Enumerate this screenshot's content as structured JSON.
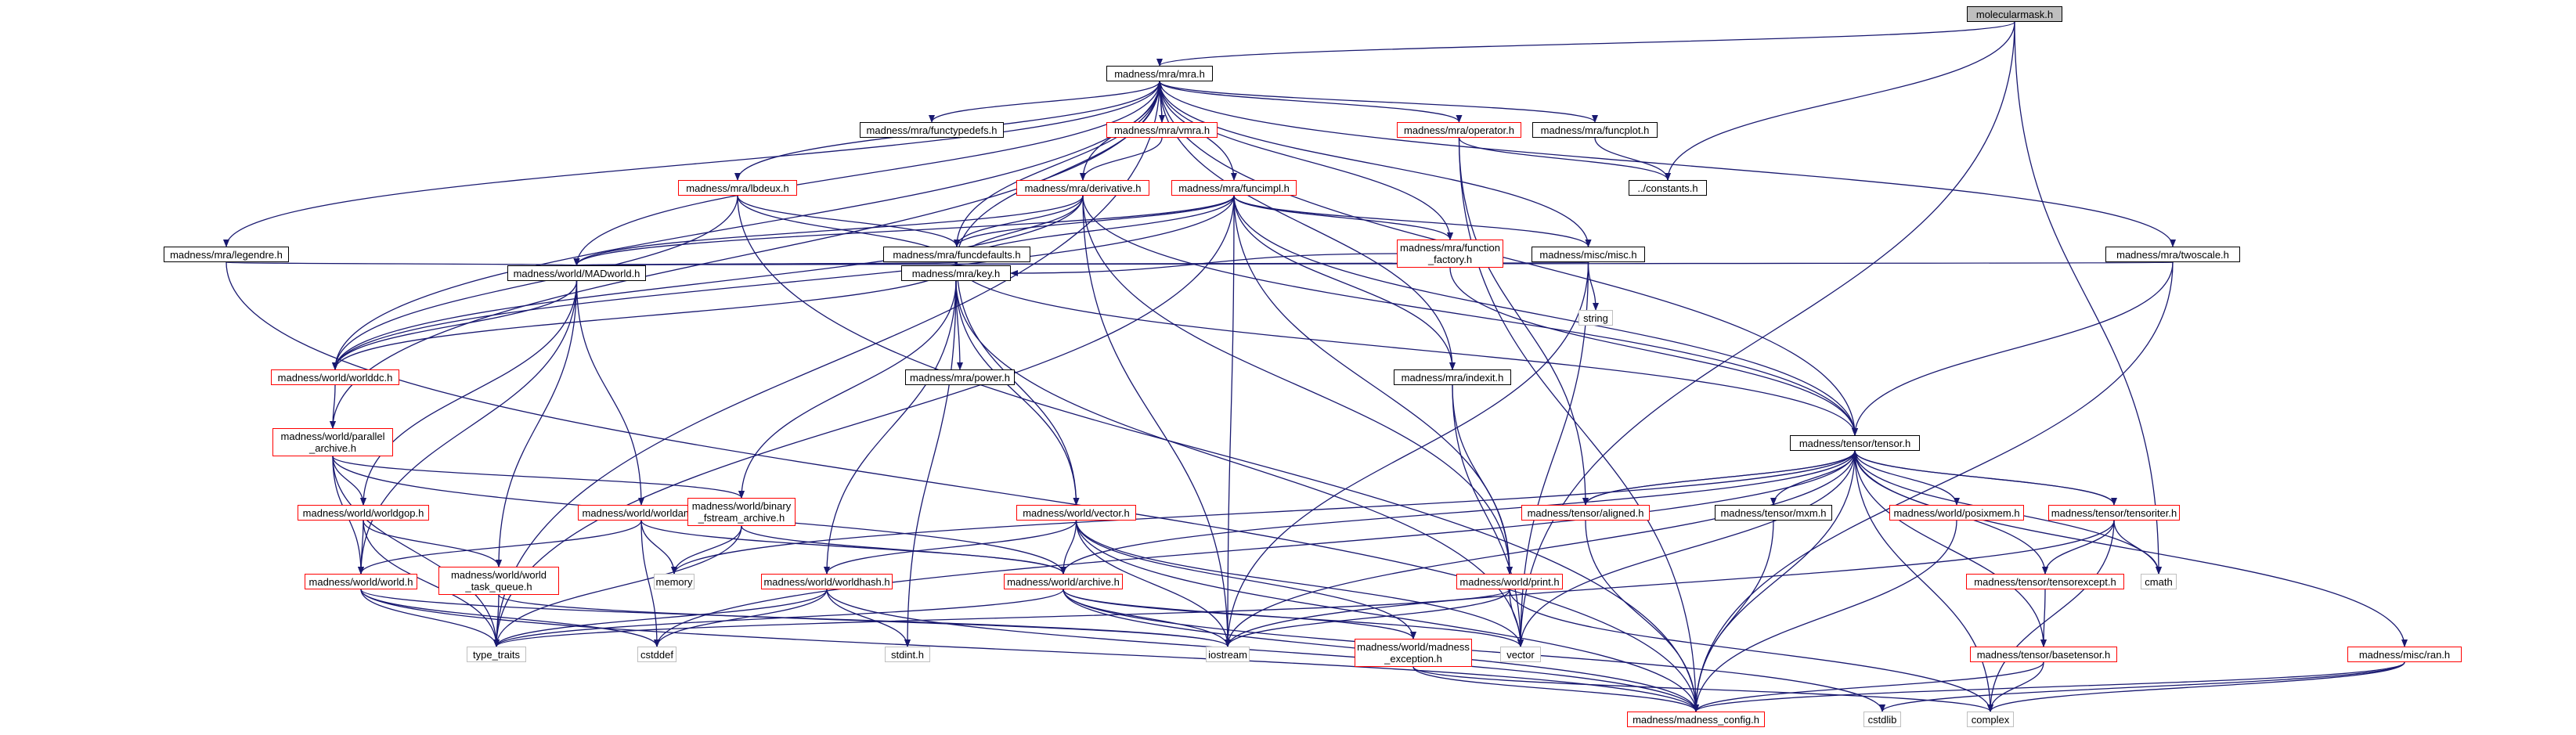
{
  "diagram": {
    "colors": {
      "edge": "#191970",
      "node_border": "#000000",
      "incomplete_border": "#ff0000",
      "system_border": "#bfbfbf",
      "root_fill": "#bfbfbf"
    },
    "nodes": {
      "moleculr": {
        "label": "molecularmask.h",
        "kind": "root"
      },
      "mra": {
        "label": "madness/mra/mra.h",
        "kind": "normal"
      },
      "ftypedefs": {
        "label": "madness/mra/functypedefs.h",
        "kind": "normal"
      },
      "vmra": {
        "label": "madness/mra/vmra.h",
        "kind": "incomplete"
      },
      "operator": {
        "label": "madness/mra/operator.h",
        "kind": "incomplete"
      },
      "funcplot": {
        "label": "madness/mra/funcplot.h",
        "kind": "normal"
      },
      "constants": {
        "label": "../constants.h",
        "kind": "normal"
      },
      "lbdeux": {
        "label": "madness/mra/lbdeux.h",
        "kind": "incomplete"
      },
      "derivative": {
        "label": "madness/mra/derivative.h",
        "kind": "incomplete"
      },
      "funcimpl": {
        "label": "madness/mra/funcimpl.h",
        "kind": "incomplete"
      },
      "legendre": {
        "label": "madness/mra/legendre.h",
        "kind": "normal"
      },
      "funcdefaults": {
        "label": "madness/mra/funcdefaults.h",
        "kind": "normal"
      },
      "ffactory": {
        "label": "madness/mra/function\n_factory.h",
        "kind": "incomplete"
      },
      "miscmisc": {
        "label": "madness/misc/misc.h",
        "kind": "normal"
      },
      "twoscale": {
        "label": "madness/mra/twoscale.h",
        "kind": "normal"
      },
      "string": {
        "label": "string",
        "kind": "system"
      },
      "madworld": {
        "label": "madness/world/MADworld.h",
        "kind": "normal"
      },
      "key": {
        "label": "madness/mra/key.h",
        "kind": "normal"
      },
      "worlddc": {
        "label": "madness/world/worlddc.h",
        "kind": "incomplete"
      },
      "power": {
        "label": "madness/mra/power.h",
        "kind": "normal"
      },
      "indexit": {
        "label": "madness/mra/indexit.h",
        "kind": "normal"
      },
      "parallel": {
        "label": "madness/world/parallel\n_archive.h",
        "kind": "incomplete"
      },
      "tensor": {
        "label": "madness/tensor/tensor.h",
        "kind": "normal"
      },
      "worldgop": {
        "label": "madness/world/worldgop.h",
        "kind": "incomplete"
      },
      "worldam": {
        "label": "madness/world/worldam.h",
        "kind": "incomplete"
      },
      "binary": {
        "label": "madness/world/binary\n_fstream_archive.h",
        "kind": "incomplete"
      },
      "vector_h": {
        "label": "madness/world/vector.h",
        "kind": "incomplete"
      },
      "aligned": {
        "label": "madness/tensor/aligned.h",
        "kind": "incomplete"
      },
      "mxm": {
        "label": "madness/tensor/mxm.h",
        "kind": "normal"
      },
      "posixmem": {
        "label": "madness/world/posixmem.h",
        "kind": "incomplete"
      },
      "tensoriter": {
        "label": "madness/tensor/tensoriter.h",
        "kind": "incomplete"
      },
      "world": {
        "label": "madness/world/world.h",
        "kind": "incomplete"
      },
      "wtaskq": {
        "label": "madness/world/world\n_task_queue.h",
        "kind": "incomplete"
      },
      "memory": {
        "label": "memory",
        "kind": "system"
      },
      "worldhash": {
        "label": "madness/world/worldhash.h",
        "kind": "incomplete"
      },
      "archive": {
        "label": "madness/world/archive.h",
        "kind": "incomplete"
      },
      "print": {
        "label": "madness/world/print.h",
        "kind": "incomplete"
      },
      "tensorexcept": {
        "label": "madness/tensor/tensorexcept.h",
        "kind": "incomplete"
      },
      "cmath": {
        "label": "cmath",
        "kind": "system"
      },
      "type_traits": {
        "label": "type_traits",
        "kind": "system"
      },
      "cstddef": {
        "label": "cstddef",
        "kind": "system"
      },
      "stdint": {
        "label": "stdint.h",
        "kind": "system"
      },
      "iostream": {
        "label": "iostream",
        "kind": "system"
      },
      "vector": {
        "label": "vector",
        "kind": "system"
      },
      "madexc": {
        "label": "madness/world/madness\n_exception.h",
        "kind": "incomplete"
      },
      "basetensor": {
        "label": "madness/tensor/basetensor.h",
        "kind": "incomplete"
      },
      "ran": {
        "label": "madness/misc/ran.h",
        "kind": "incomplete"
      },
      "config": {
        "label": "madness/madness_config.h",
        "kind": "incomplete"
      },
      "cstdlib": {
        "label": "cstdlib",
        "kind": "system"
      },
      "complex": {
        "label": "complex",
        "kind": "system"
      }
    },
    "edges": [
      [
        "moleculr",
        "mra"
      ],
      [
        "moleculr",
        "constants"
      ],
      [
        "moleculr",
        "cmath"
      ],
      [
        "moleculr",
        "vector"
      ],
      [
        "mra",
        "ftypedefs"
      ],
      [
        "mra",
        "vmra"
      ],
      [
        "mra",
        "operator"
      ],
      [
        "mra",
        "funcplot"
      ],
      [
        "mra",
        "lbdeux"
      ],
      [
        "mra",
        "derivative"
      ],
      [
        "mra",
        "funcimpl"
      ],
      [
        "mra",
        "legendre"
      ],
      [
        "mra",
        "funcdefaults"
      ],
      [
        "mra",
        "ffactory"
      ],
      [
        "mra",
        "miscmisc"
      ],
      [
        "mra",
        "twoscale"
      ],
      [
        "mra",
        "madworld"
      ],
      [
        "mra",
        "key"
      ],
      [
        "mra",
        "worlddc"
      ],
      [
        "mra",
        "indexit"
      ],
      [
        "mra",
        "parallel"
      ],
      [
        "mra",
        "tensor"
      ],
      [
        "mra",
        "type_traits"
      ],
      [
        "vmra",
        "mra"
      ],
      [
        "vmra",
        "derivative"
      ],
      [
        "operator",
        "constants"
      ],
      [
        "operator",
        "aligned"
      ],
      [
        "operator",
        "config"
      ],
      [
        "funcplot",
        "constants"
      ],
      [
        "lbdeux",
        "funcdefaults"
      ],
      [
        "lbdeux",
        "key"
      ],
      [
        "lbdeux",
        "worlddc"
      ],
      [
        "lbdeux",
        "config"
      ],
      [
        "derivative",
        "funcdefaults"
      ],
      [
        "derivative",
        "key"
      ],
      [
        "derivative",
        "madworld"
      ],
      [
        "derivative",
        "worlddc"
      ],
      [
        "derivative",
        "tensor"
      ],
      [
        "derivative",
        "iostream"
      ],
      [
        "derivative",
        "print"
      ],
      [
        "funcimpl",
        "miscmisc"
      ],
      [
        "funcimpl",
        "ffactory"
      ],
      [
        "funcimpl",
        "funcdefaults"
      ],
      [
        "funcimpl",
        "key"
      ],
      [
        "funcimpl",
        "madworld"
      ],
      [
        "funcimpl",
        "worlddc"
      ],
      [
        "funcimpl",
        "indexit"
      ],
      [
        "funcimpl",
        "tensor"
      ],
      [
        "funcimpl",
        "iostream"
      ],
      [
        "funcimpl",
        "print"
      ],
      [
        "funcimpl",
        "type_traits"
      ],
      [
        "legendre",
        "madworld"
      ],
      [
        "legendre",
        "config"
      ],
      [
        "funcdefaults",
        "madworld"
      ],
      [
        "funcdefaults",
        "key"
      ],
      [
        "funcdefaults",
        "tensor"
      ],
      [
        "funcdefaults",
        "vector_h"
      ],
      [
        "funcdefaults",
        "worlddc"
      ],
      [
        "ffactory",
        "key"
      ],
      [
        "ffactory",
        "tensor"
      ],
      [
        "miscmisc",
        "string"
      ],
      [
        "miscmisc",
        "iostream"
      ],
      [
        "miscmisc",
        "madworld"
      ],
      [
        "miscmisc",
        "vector"
      ],
      [
        "twoscale",
        "tensor"
      ],
      [
        "twoscale",
        "madworld"
      ],
      [
        "twoscale",
        "config"
      ],
      [
        "madworld",
        "worlddc"
      ],
      [
        "madworld",
        "worldgop"
      ],
      [
        "madworld",
        "worldam"
      ],
      [
        "madworld",
        "world"
      ],
      [
        "madworld",
        "wtaskq"
      ],
      [
        "key",
        "power"
      ],
      [
        "key",
        "vector_h"
      ],
      [
        "key",
        "binary"
      ],
      [
        "key",
        "worldhash"
      ],
      [
        "key",
        "stdint"
      ],
      [
        "key",
        "vector"
      ],
      [
        "worlddc",
        "parallel"
      ],
      [
        "indexit",
        "print"
      ],
      [
        "indexit",
        "vector"
      ],
      [
        "parallel",
        "worldgop"
      ],
      [
        "parallel",
        "binary"
      ],
      [
        "parallel",
        "world"
      ],
      [
        "parallel",
        "archive"
      ],
      [
        "parallel",
        "type_traits"
      ],
      [
        "tensor",
        "aligned"
      ],
      [
        "tensor",
        "mxm"
      ],
      [
        "tensor",
        "posixmem"
      ],
      [
        "tensor",
        "tensoriter"
      ],
      [
        "tensor",
        "tensorexcept"
      ],
      [
        "tensor",
        "cmath"
      ],
      [
        "tensor",
        "vector"
      ],
      [
        "tensor",
        "config"
      ],
      [
        "tensor",
        "complex"
      ],
      [
        "tensor",
        "ran"
      ],
      [
        "tensor",
        "basetensor"
      ],
      [
        "tensor",
        "archive"
      ],
      [
        "tensor",
        "cstddef"
      ],
      [
        "tensor",
        "memory"
      ],
      [
        "tensor",
        "iostream"
      ],
      [
        "worldgop",
        "world"
      ],
      [
        "worldgop",
        "wtaskq"
      ],
      [
        "worldgop",
        "type_traits"
      ],
      [
        "worldam",
        "world"
      ],
      [
        "worldam",
        "memory"
      ],
      [
        "worldam",
        "archive"
      ],
      [
        "worldam",
        "cstddef"
      ],
      [
        "binary",
        "archive"
      ],
      [
        "binary",
        "type_traits"
      ],
      [
        "binary",
        "memory"
      ],
      [
        "vector_h",
        "archive"
      ],
      [
        "vector_h",
        "worldhash"
      ],
      [
        "vector_h",
        "iostream"
      ],
      [
        "vector_h",
        "vector"
      ],
      [
        "vector_h",
        "madexc"
      ],
      [
        "vector_h",
        "config"
      ],
      [
        "aligned",
        "tensor"
      ],
      [
        "aligned",
        "config"
      ],
      [
        "mxm",
        "config"
      ],
      [
        "posixmem",
        "config"
      ],
      [
        "tensoriter",
        "tensor"
      ],
      [
        "tensoriter",
        "tensorexcept"
      ],
      [
        "tensoriter",
        "cmath"
      ],
      [
        "tensoriter",
        "iostream"
      ],
      [
        "tensoriter",
        "complex"
      ],
      [
        "world",
        "type_traits"
      ],
      [
        "world",
        "cstddef"
      ],
      [
        "world",
        "iostream"
      ],
      [
        "world",
        "config"
      ],
      [
        "wtaskq",
        "type_traits"
      ],
      [
        "wtaskq",
        "iostream"
      ],
      [
        "worldhash",
        "type_traits"
      ],
      [
        "worldhash",
        "stdint"
      ],
      [
        "worldhash",
        "cstddef"
      ],
      [
        "worldhash",
        "config"
      ],
      [
        "archive",
        "type_traits"
      ],
      [
        "archive",
        "iostream"
      ],
      [
        "archive",
        "vector"
      ],
      [
        "archive",
        "madexc"
      ],
      [
        "archive",
        "config"
      ],
      [
        "archive",
        "cstdlib"
      ],
      [
        "print",
        "iostream"
      ],
      [
        "print",
        "vector"
      ],
      [
        "print",
        "type_traits"
      ],
      [
        "print",
        "complex"
      ],
      [
        "tensorexcept",
        "basetensor"
      ],
      [
        "madexc",
        "config"
      ],
      [
        "madexc",
        "complex"
      ],
      [
        "basetensor",
        "config"
      ],
      [
        "basetensor",
        "complex"
      ],
      [
        "ran",
        "config"
      ],
      [
        "ran",
        "complex"
      ],
      [
        "ran",
        "cstdlib"
      ]
    ]
  }
}
